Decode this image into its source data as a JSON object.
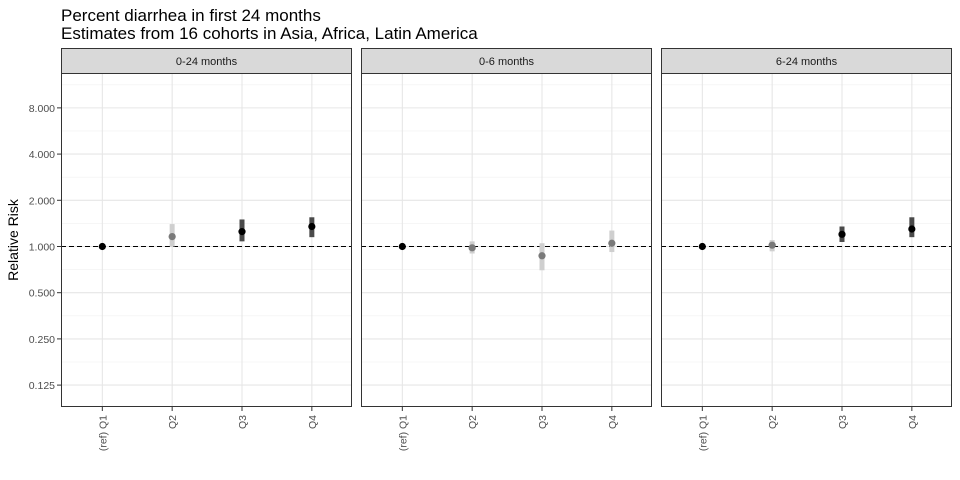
{
  "chart_data": {
    "type": "scatter",
    "title": "Percent diarrhea in first 24 months",
    "subtitle": "Estimates from 16 cohorts in Asia, Africa, Latin America",
    "xlabel": "",
    "ylabel": "Relative Risk",
    "y_scale": "log2",
    "ylim": [
      0.09,
      13.5
    ],
    "y_ticks": [
      0.125,
      0.25,
      0.5,
      1,
      2,
      4,
      8
    ],
    "y_tick_labels": [
      "0.125",
      "0.250",
      "0.500",
      "1.000",
      "2.000",
      "4.000",
      "8.000"
    ],
    "reference_line": 1,
    "grid": true,
    "categories": [
      "(ref) Q1",
      "Q2",
      "Q3",
      "Q4"
    ],
    "colors": {
      "dark": "#000000",
      "gray": "#7a7a7a",
      "ref_line": "#000000",
      "strip_fill": "#d9d9d9"
    },
    "panels": [
      {
        "label": "0-24 months",
        "points": [
          {
            "x": "(ref) Q1",
            "y": 1.0,
            "lower": 1.0,
            "upper": 1.0,
            "shade": "dark"
          },
          {
            "x": "Q2",
            "y": 1.16,
            "lower": 1.0,
            "upper": 1.4,
            "shade": "gray"
          },
          {
            "x": "Q3",
            "y": 1.25,
            "lower": 1.08,
            "upper": 1.5,
            "shade": "dark"
          },
          {
            "x": "Q4",
            "y": 1.35,
            "lower": 1.15,
            "upper": 1.55,
            "shade": "dark"
          }
        ]
      },
      {
        "label": "0-6 months",
        "points": [
          {
            "x": "(ref) Q1",
            "y": 1.0,
            "lower": 1.0,
            "upper": 1.0,
            "shade": "dark"
          },
          {
            "x": "Q2",
            "y": 0.98,
            "lower": 0.9,
            "upper": 1.08,
            "shade": "gray"
          },
          {
            "x": "Q3",
            "y": 0.87,
            "lower": 0.7,
            "upper": 1.05,
            "shade": "gray"
          },
          {
            "x": "Q4",
            "y": 1.05,
            "lower": 0.92,
            "upper": 1.27,
            "shade": "gray"
          }
        ]
      },
      {
        "label": "6-24 months",
        "points": [
          {
            "x": "(ref) Q1",
            "y": 1.0,
            "lower": 1.0,
            "upper": 1.0,
            "shade": "dark"
          },
          {
            "x": "Q2",
            "y": 1.02,
            "lower": 0.93,
            "upper": 1.1,
            "shade": "gray"
          },
          {
            "x": "Q3",
            "y": 1.2,
            "lower": 1.07,
            "upper": 1.35,
            "shade": "dark"
          },
          {
            "x": "Q4",
            "y": 1.3,
            "lower": 1.15,
            "upper": 1.55,
            "shade": "dark"
          }
        ]
      }
    ]
  }
}
